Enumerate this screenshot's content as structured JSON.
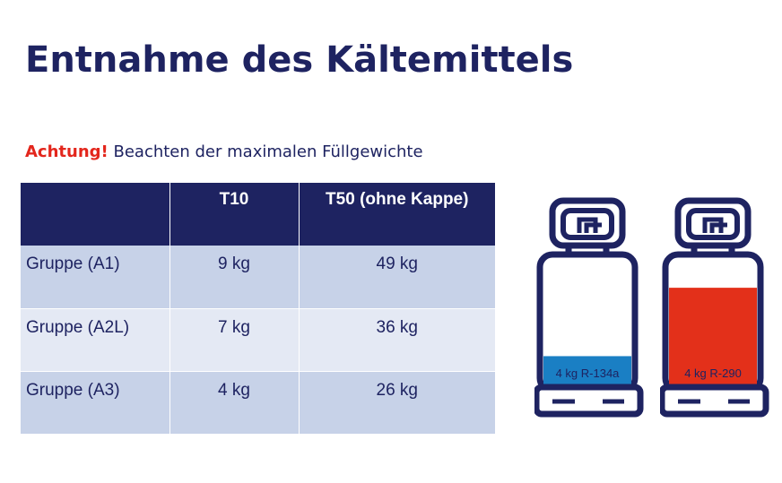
{
  "title": "Entnahme des Kältemittels",
  "note": {
    "warning": "Achtung!",
    "text": "Beachten der maximalen Füllgewichte"
  },
  "table": {
    "headers": [
      "",
      "T10",
      "T50 (ohne Kappe)"
    ],
    "rows": [
      {
        "group": "Gruppe (A1)",
        "t10": "9 kg",
        "t50": "49 kg"
      },
      {
        "group": "Gruppe (A2L)",
        "t10": "7 kg",
        "t50": "36 kg"
      },
      {
        "group": "Gruppe (A3)",
        "t10": "4 kg",
        "t50": "26 kg"
      }
    ]
  },
  "cylinders": [
    {
      "label": "4 kg R-134a",
      "fill_color": "#1a7fc4",
      "fill_level": 0.24
    },
    {
      "label": "4 kg R-290",
      "fill_color": "#e3301a",
      "fill_level": 0.77
    }
  ],
  "colors": {
    "primary": "#1e2361",
    "warning": "#e3261c",
    "row_dark": "#c7d2e8",
    "row_light": "#e4e9f4"
  }
}
